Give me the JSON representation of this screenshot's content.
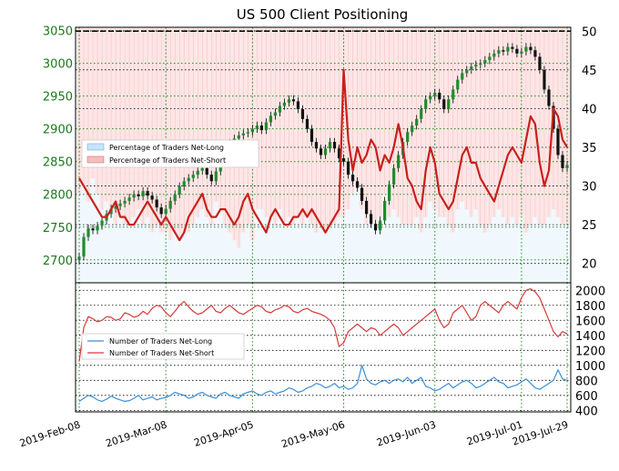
{
  "chart_data": {
    "type": "line",
    "title": "US 500 Client Positioning",
    "x_ticks": [
      "2019-Feb-08",
      "2019-Mar-08",
      "2019-Apr-05",
      "2019-May-06",
      "2019-Jun-03",
      "2019-Jul-01",
      "2019-Jul-29"
    ],
    "top_panel": {
      "left_axis": {
        "ticks": [
          2700,
          2750,
          2800,
          2850,
          2900,
          2950,
          3000,
          3050
        ],
        "range": [
          2665,
          3055
        ]
      },
      "right_axis": {
        "ticks": [
          20,
          25,
          30,
          35,
          40,
          45,
          50
        ],
        "range": [
          17.5,
          50.5
        ]
      },
      "dashed_level_right": 50,
      "legend": [
        "Percentage of Traders Net-Long",
        "Percentage of Traders Net-Short"
      ],
      "legend_placement": "center-left",
      "price_series": {
        "name": "US 500 price",
        "values": [
          2705,
          2735,
          2748,
          2745,
          2752,
          2760,
          2770,
          2778,
          2782,
          2786,
          2790,
          2795,
          2800,
          2797,
          2805,
          2798,
          2792,
          2780,
          2770,
          2778,
          2790,
          2800,
          2812,
          2820,
          2825,
          2830,
          2836,
          2840,
          2830,
          2820,
          2835,
          2850,
          2865,
          2878,
          2885,
          2890,
          2893,
          2895,
          2900,
          2905,
          2898,
          2910,
          2920,
          2925,
          2935,
          2940,
          2945,
          2942,
          2930,
          2915,
          2900,
          2880,
          2870,
          2860,
          2870,
          2880,
          2870,
          2855,
          2850,
          2830,
          2820,
          2810,
          2790,
          2770,
          2755,
          2745,
          2760,
          2790,
          2815,
          2840,
          2860,
          2880,
          2895,
          2905,
          2915,
          2930,
          2945,
          2950,
          2955,
          2945,
          2930,
          2945,
          2960,
          2975,
          2985,
          2990,
          2995,
          2998,
          3000,
          3005,
          3010,
          3015,
          3020,
          3018,
          3025,
          3022,
          3015,
          3018,
          3025,
          3020,
          3010,
          2990,
          2960,
          2935,
          2900,
          2860,
          2840,
          2845
        ]
      },
      "net_long_pct": {
        "name": "Percentage of Traders Net-Long",
        "values": [
          29,
          30,
          28,
          31,
          29,
          27,
          28,
          27,
          25,
          26,
          25,
          25,
          26,
          27,
          25,
          26,
          24,
          25,
          24,
          24,
          23,
          24,
          23,
          24,
          24,
          25,
          26,
          27,
          26,
          25,
          28,
          27,
          25,
          24,
          23,
          22,
          24,
          25,
          23,
          27,
          27,
          26,
          26,
          25,
          27,
          25,
          26,
          25,
          26,
          25,
          26,
          25,
          24,
          25,
          24,
          25,
          25,
          26,
          26,
          27,
          29,
          30,
          27,
          25,
          26,
          25,
          26,
          29,
          26,
          27,
          26,
          25,
          25,
          25,
          26,
          24,
          26,
          28,
          27,
          26,
          26,
          25,
          24,
          27,
          28,
          27,
          26,
          27,
          25,
          24,
          25,
          26,
          27,
          26,
          25,
          26,
          25,
          26,
          24,
          25,
          26,
          25,
          25,
          26,
          27,
          26,
          25,
          25
        ]
      },
      "net_short_pct": {
        "name": "Percentage of Traders Net-Short",
        "values": [
          31,
          30,
          29,
          28,
          27,
          26,
          26,
          27,
          28,
          26,
          26,
          25,
          25,
          26,
          27,
          28,
          27,
          26,
          25,
          26,
          25,
          24,
          23,
          24,
          26,
          27,
          28,
          29,
          27,
          26,
          26,
          27,
          27,
          26,
          25,
          26,
          28,
          29,
          27,
          26,
          25,
          24,
          26,
          27,
          26,
          25,
          25,
          26,
          26,
          27,
          26,
          27,
          26,
          25,
          24,
          25,
          26,
          27,
          45,
          36,
          32,
          35,
          33,
          34,
          36,
          35,
          32,
          34,
          33,
          35,
          38,
          35,
          31,
          30,
          28,
          27,
          32,
          35,
          33,
          29,
          28,
          27,
          28,
          31,
          34,
          35,
          33,
          33,
          31,
          30,
          29,
          28,
          30,
          32,
          34,
          35,
          34,
          33,
          36,
          39,
          38,
          33,
          30,
          32,
          40,
          39,
          36,
          35
        ]
      }
    },
    "bottom_panel": {
      "right_axis": {
        "ticks": [
          400,
          600,
          800,
          1000,
          1200,
          1400,
          1600,
          1800,
          2000
        ],
        "range": [
          380,
          2100
        ]
      },
      "legend": [
        "Number of Traders Net-Long",
        "Number of Traders Net-Short"
      ],
      "legend_placement": "center-left",
      "net_long_count": {
        "name": "Number of Traders Net-Long",
        "values": [
          520,
          560,
          600,
          580,
          540,
          520,
          550,
          590,
          560,
          540,
          520,
          530,
          560,
          600,
          540,
          560,
          580,
          540,
          560,
          570,
          600,
          640,
          620,
          600,
          560,
          580,
          620,
          640,
          600,
          580,
          560,
          620,
          640,
          600,
          580,
          560,
          620,
          640,
          660,
          620,
          600,
          640,
          660,
          620,
          640,
          660,
          700,
          680,
          640,
          660,
          700,
          720,
          760,
          740,
          700,
          720,
          760,
          700,
          720,
          680,
          700,
          760,
          1000,
          820,
          760,
          740,
          780,
          800,
          760,
          800,
          820,
          780,
          840,
          760,
          800,
          840,
          720,
          700,
          660,
          680,
          720,
          760,
          700,
          740,
          780,
          800,
          760,
          700,
          720,
          760,
          800,
          840,
          780,
          760,
          700,
          720,
          740,
          780,
          820,
          760,
          700,
          680,
          720,
          760,
          800,
          940,
          820,
          800
        ]
      },
      "net_short_count": {
        "name": "Number of Traders Net-Short",
        "values": [
          1050,
          1500,
          1650,
          1620,
          1580,
          1600,
          1650,
          1640,
          1600,
          1620,
          1700,
          1680,
          1640,
          1660,
          1720,
          1680,
          1760,
          1800,
          1780,
          1700,
          1650,
          1720,
          1800,
          1850,
          1780,
          1720,
          1680,
          1700,
          1750,
          1800,
          1720,
          1700,
          1760,
          1800,
          1750,
          1700,
          1680,
          1720,
          1760,
          1800,
          1780,
          1720,
          1700,
          1740,
          1760,
          1800,
          1780,
          1720,
          1700,
          1740,
          1760,
          1720,
          1700,
          1680,
          1650,
          1600,
          1500,
          1250,
          1300,
          1450,
          1500,
          1550,
          1500,
          1450,
          1500,
          1480,
          1400,
          1450,
          1500,
          1550,
          1500,
          1400,
          1450,
          1500,
          1550,
          1600,
          1650,
          1700,
          1750,
          1600,
          1500,
          1550,
          1700,
          1750,
          1800,
          1700,
          1600,
          1650,
          1800,
          1850,
          1800,
          1750,
          1700,
          1800,
          1850,
          1800,
          1750,
          1900,
          2000,
          2020,
          1980,
          1900,
          1750,
          1600,
          1450,
          1380,
          1450,
          1420
        ]
      }
    }
  }
}
